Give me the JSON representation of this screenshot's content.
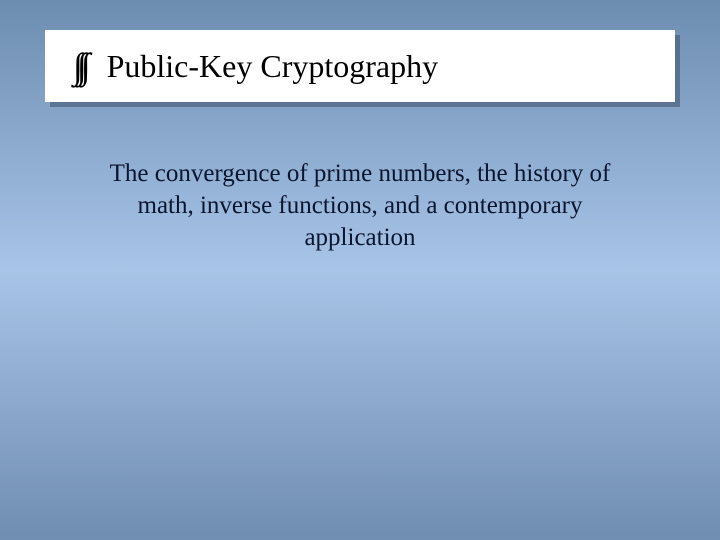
{
  "slide": {
    "background": {
      "gradient_top": "#6c8cb0",
      "gradient_mid": "#a8c5e8",
      "gradient_bottom": "#6f8db0"
    },
    "title": {
      "icon": "∫∫∫",
      "text": "Public-Key Cryptography",
      "box_bg": "#ffffff",
      "text_color": "#000000",
      "font_size": 32,
      "shadow_color": "rgba(60,80,110,0.55)"
    },
    "subtitle": {
      "text": "The convergence of prime numbers, the history of math, inverse functions, and a contemporary application",
      "font_size": 25,
      "text_color": "#0a1530"
    }
  }
}
